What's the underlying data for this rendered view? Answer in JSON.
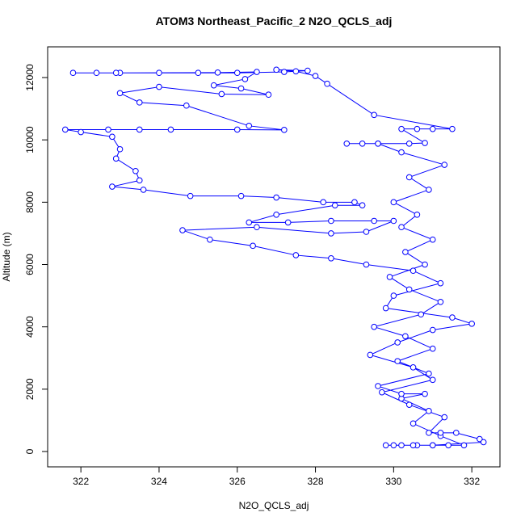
{
  "chart_data": {
    "type": "scatter",
    "title": "ATOM3 Northeast_Pacific_2 N2O_QCLS_adj",
    "x_label": "N2O_QCLS_adj",
    "y_label": "Altitude (m)",
    "color": "#0000ff",
    "connect": true,
    "xlim": [
      321.15,
      332.72
    ],
    "ylim": [
      -492,
      12985
    ],
    "xticks": [
      322,
      324,
      326,
      328,
      330,
      332
    ],
    "yticks": [
      0,
      2000,
      4000,
      6000,
      8000,
      10000,
      12000
    ],
    "x": [
      329.8,
      330.2,
      330.6,
      331.0,
      331.4,
      331.8,
      331.2,
      330.5,
      330.9,
      330.2,
      330.8,
      330.2,
      329.6,
      330.9,
      330.1,
      331.0,
      330.3,
      329.5,
      330.7,
      331.2,
      330.4,
      329.9,
      330.8,
      330.3,
      331.0,
      330.2,
      330.6,
      330.0,
      330.9,
      330.4,
      331.3,
      330.2,
      329.6,
      329.2,
      328.8,
      329.6,
      330.4,
      330.8,
      330.2,
      330.6,
      331.0,
      331.5,
      329.5,
      328.3,
      328.0,
      327.5,
      327.0,
      327.8,
      327.2,
      326.0,
      325.0,
      324.0,
      323.0,
      322.4,
      321.8,
      322.9,
      325.5,
      326.5,
      326.2,
      325.4,
      326.1,
      326.8,
      325.6,
      324.0,
      323.0,
      323.5,
      324.7,
      326.3,
      327.2,
      326.0,
      324.3,
      323.5,
      322.7,
      321.6,
      322.0,
      322.8,
      323.0,
      322.9,
      323.4,
      323.5,
      322.8,
      323.6,
      324.8,
      326.1,
      327.0,
      328.2,
      329.0,
      329.2,
      328.5,
      327.0,
      326.3,
      327.3,
      328.4,
      329.5,
      330.0,
      329.3,
      328.4,
      326.5,
      324.6,
      325.3,
      326.4,
      327.5,
      328.4,
      329.3,
      330.5,
      331.2,
      330.0,
      329.8,
      331.5,
      332.0,
      331.0,
      330.1,
      329.4,
      330.5,
      331.0,
      329.7,
      330.4,
      331.3,
      330.9,
      331.2,
      331.6,
      332.2,
      332.3,
      331.0,
      330.5,
      330.0
    ],
    "y": [
      200,
      200,
      200,
      200,
      200,
      200,
      500,
      900,
      1300,
      1700,
      1850,
      1850,
      2100,
      2500,
      2900,
      3300,
      3700,
      4000,
      4400,
      4800,
      5200,
      5600,
      6000,
      6400,
      6800,
      7200,
      7600,
      8000,
      8400,
      8800,
      9200,
      9600,
      9880,
      9880,
      9880,
      9880,
      9880,
      9900,
      10350,
      10350,
      10350,
      10350,
      10800,
      11800,
      12050,
      12200,
      12250,
      12220,
      12180,
      12150,
      12150,
      12150,
      12150,
      12150,
      12150,
      12150,
      12160,
      12180,
      11950,
      11750,
      11650,
      11450,
      11470,
      11700,
      11500,
      11200,
      11100,
      10450,
      10320,
      10330,
      10330,
      10330,
      10330,
      10330,
      10250,
      10100,
      9700,
      9400,
      9000,
      8700,
      8500,
      8400,
      8200,
      8200,
      8150,
      8000,
      8000,
      7900,
      7900,
      7600,
      7350,
      7350,
      7400,
      7400,
      7400,
      7050,
      7000,
      7200,
      7100,
      6800,
      6600,
      6300,
      6200,
      6000,
      5800,
      5400,
      5000,
      4600,
      4300,
      4100,
      3900,
      3500,
      3100,
      2700,
      2300,
      1900,
      1500,
      1100,
      600,
      600,
      600,
      400,
      300,
      200,
      200,
      200
    ]
  }
}
